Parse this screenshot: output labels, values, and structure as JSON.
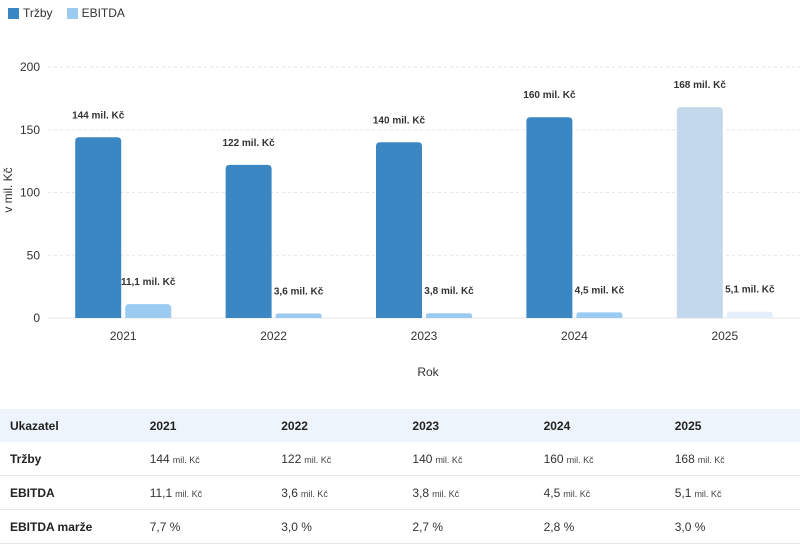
{
  "legend": [
    {
      "name": "Tržby",
      "color": "#3a87c4"
    },
    {
      "name": "EBITDA",
      "color": "#9ccbf1"
    }
  ],
  "chart_data": {
    "type": "bar",
    "categories": [
      "2021",
      "2022",
      "2023",
      "2024",
      "2025"
    ],
    "series": [
      {
        "name": "Tržby",
        "values": [
          144,
          122,
          140,
          160,
          168
        ],
        "labels": [
          "144 mil. Kč",
          "122 mil. Kč",
          "140 mil. Kč",
          "160 mil. Kč",
          "168 mil. Kč"
        ],
        "color": "#3a87c4",
        "forecast_color": "#c3d9eb"
      },
      {
        "name": "EBITDA",
        "values": [
          11.1,
          3.6,
          3.8,
          4.5,
          5.1
        ],
        "labels": [
          "11,1 mil. Kč",
          "3,6 mil. Kč",
          "3,8 mil. Kč",
          "4,5 mil. Kč",
          "5,1 mil. Kč"
        ],
        "color": "#9ccbf1",
        "forecast_color": "#e3eef8"
      }
    ],
    "forecast_categories": [
      "2025"
    ],
    "ylim": [
      0,
      200
    ],
    "yticks": [
      "0",
      "50",
      "100",
      "150",
      "200"
    ],
    "ylabel": "v mil. Kč",
    "xlabel": "Rok",
    "grid": true,
    "legend_position": "top-left"
  },
  "table": {
    "header": [
      "Ukazatel",
      "2021",
      "2022",
      "2023",
      "2024",
      "2025"
    ],
    "rows": [
      {
        "label": "Tržby",
        "values": [
          "144",
          "122",
          "140",
          "160",
          "168"
        ],
        "unit": "mil. Kč"
      },
      {
        "label": "EBITDA",
        "values": [
          "11,1",
          "3,6",
          "3,8",
          "4,5",
          "5,1"
        ],
        "unit": "mil. Kč"
      },
      {
        "label": "EBITDA marže",
        "values": [
          "7,7 %",
          "3,0 %",
          "2,7 %",
          "2,8 %",
          "3,0 %"
        ],
        "unit": ""
      }
    ]
  }
}
